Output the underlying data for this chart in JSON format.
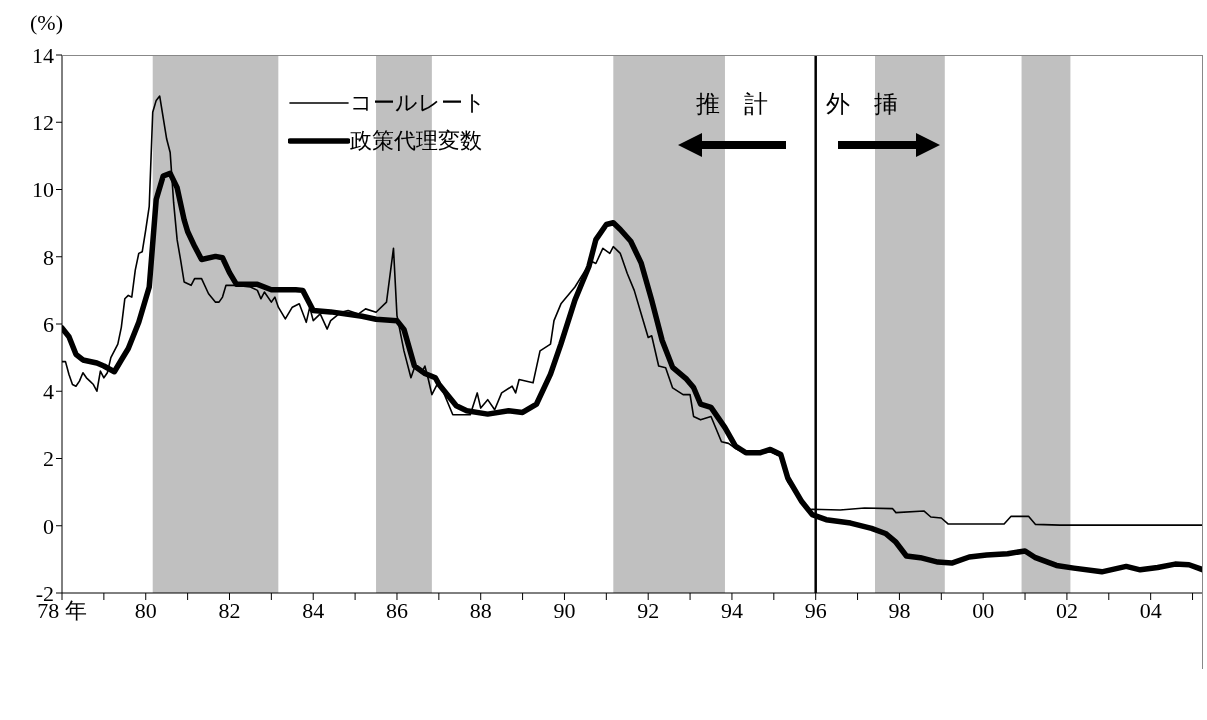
{
  "chart_data": {
    "type": "line",
    "ylabel": "(%)",
    "xlim": [
      "1978-01",
      "2005-04"
    ],
    "ylim": [
      -2,
      14
    ],
    "yticks": [
      -2,
      0,
      2,
      4,
      6,
      8,
      10,
      12,
      14
    ],
    "xticks": [
      {
        "value": "1978",
        "label": "78 年"
      },
      {
        "value": "1979",
        "label": null
      },
      {
        "value": "1980",
        "label": "80"
      },
      {
        "value": "1981",
        "label": null
      },
      {
        "value": "1982",
        "label": "82"
      },
      {
        "value": "1983",
        "label": null
      },
      {
        "value": "1984",
        "label": "84"
      },
      {
        "value": "1985",
        "label": null
      },
      {
        "value": "1986",
        "label": "86"
      },
      {
        "value": "1987",
        "label": null
      },
      {
        "value": "1988",
        "label": "88"
      },
      {
        "value": "1989",
        "label": null
      },
      {
        "value": "1990",
        "label": "90"
      },
      {
        "value": "1991",
        "label": null
      },
      {
        "value": "1992",
        "label": "92"
      },
      {
        "value": "1993",
        "label": null
      },
      {
        "value": "1994",
        "label": "94"
      },
      {
        "value": "1995",
        "label": null
      },
      {
        "value": "1996",
        "label": "96"
      },
      {
        "value": "1997",
        "label": null
      },
      {
        "value": "1998",
        "label": "98"
      },
      {
        "value": "1999",
        "label": null
      },
      {
        "value": "2000",
        "label": "00"
      },
      {
        "value": "2001",
        "label": null
      },
      {
        "value": "2002",
        "label": "02"
      },
      {
        "value": "2003",
        "label": null
      },
      {
        "value": "2004",
        "label": "04"
      },
      {
        "value": "2005",
        "label": null
      }
    ],
    "grid": false,
    "legend": "top left",
    "series": [
      {
        "name": "コールレート",
        "color": "#000000",
        "x": [
          "1978-01",
          "1978-02",
          "1978-03",
          "1978-04",
          "1978-05",
          "1978-06",
          "1978-07",
          "1978-08",
          "1978-09",
          "1978-10",
          "1978-11",
          "1978-12",
          "1979-01",
          "1979-02",
          "1979-03",
          "1979-05",
          "1979-06",
          "1979-07",
          "1979-08",
          "1979-09",
          "1979-10",
          "1979-11",
          "1979-12",
          "1980-01",
          "1980-02",
          "1980-03",
          "1980-04",
          "1980-05",
          "1980-07",
          "1980-08",
          "1980-09",
          "1980-10",
          "1980-11",
          "1980-12",
          "1981-02",
          "1981-03",
          "1981-05",
          "1981-07",
          "1981-09",
          "1981-10",
          "1981-11",
          "1981-12",
          "1982-03",
          "1982-07",
          "1982-09",
          "1982-10",
          "1982-11",
          "1983-01",
          "1983-02",
          "1983-03",
          "1983-05",
          "1983-07",
          "1983-09",
          "1983-11",
          "1983-12",
          "1984-01",
          "1984-03",
          "1984-05",
          "1984-06",
          "1984-09",
          "1984-11",
          "1985-02",
          "1985-04",
          "1985-07",
          "1985-10",
          "1985-12",
          "1986-01",
          "1986-03",
          "1986-05",
          "1986-06",
          "1986-08",
          "1986-09",
          "1986-10",
          "1986-11",
          "1987-01",
          "1987-05",
          "1987-10",
          "1987-12",
          "1988-01",
          "1988-03",
          "1988-05",
          "1988-07",
          "1988-10",
          "1988-11",
          "1988-12",
          "1989-04",
          "1989-06",
          "1989-09",
          "1989-10",
          "1989-12",
          "1990-04",
          "1990-07",
          "1990-09",
          "1990-10",
          "1990-12",
          "1991-02",
          "1991-03",
          "1991-05",
          "1991-07",
          "1991-09",
          "1991-11",
          "1992-01",
          "1992-02",
          "1992-04",
          "1992-06",
          "1992-08",
          "1992-11",
          "1993-01",
          "1993-02",
          "1993-04",
          "1993-07",
          "1993-10",
          "1993-12",
          "1994-02",
          "1994-05",
          "1994-09",
          "1994-12",
          "1995-03",
          "1995-05",
          "1995-09",
          "1995-11",
          "1995-12",
          "1996-08",
          "1997-03",
          "1997-11",
          "1997-12",
          "1998-08",
          "1998-10",
          "1999-01",
          "1999-03",
          "2000-07",
          "2000-09",
          "2001-02",
          "2001-04",
          "2001-11",
          "2005-04"
        ],
        "values": [
          4.88,
          4.88,
          4.5,
          4.2,
          4.15,
          4.3,
          4.55,
          4.4,
          4.3,
          4.2,
          4.0,
          4.6,
          4.4,
          4.55,
          5.0,
          5.4,
          5.9,
          6.75,
          6.85,
          6.8,
          7.6,
          8.1,
          8.15,
          8.8,
          9.5,
          12.3,
          12.65,
          12.78,
          11.5,
          11.1,
          9.6,
          8.5,
          7.9,
          7.25,
          7.15,
          7.35,
          7.35,
          6.9,
          6.65,
          6.65,
          6.8,
          7.15,
          7.15,
          7.1,
          7.0,
          6.75,
          6.95,
          6.65,
          6.8,
          6.5,
          6.15,
          6.5,
          6.6,
          6.05,
          6.5,
          6.1,
          6.3,
          5.85,
          6.1,
          6.35,
          6.4,
          6.3,
          6.45,
          6.35,
          6.65,
          8.25,
          6.25,
          5.2,
          4.4,
          4.7,
          4.55,
          4.75,
          4.35,
          3.9,
          4.3,
          3.3,
          3.3,
          3.95,
          3.5,
          3.75,
          3.45,
          3.95,
          4.15,
          3.95,
          4.35,
          4.25,
          5.2,
          5.4,
          6.1,
          6.6,
          7.1,
          7.6,
          7.85,
          7.8,
          8.25,
          8.1,
          8.3,
          8.1,
          7.5,
          7.0,
          6.3,
          5.6,
          5.65,
          4.75,
          4.7,
          4.1,
          3.9,
          3.9,
          3.25,
          3.15,
          3.25,
          2.5,
          2.45,
          2.3,
          2.15,
          2.15,
          2.2,
          2.05,
          1.3,
          0.75,
          0.47,
          0.49,
          0.47,
          0.53,
          0.51,
          0.39,
          0.44,
          0.26,
          0.23,
          0.05,
          0.05,
          0.28,
          0.28,
          0.04,
          0.02,
          0.02
        ]
      },
      {
        "name": "政策代理変数",
        "color": "#000000",
        "x": [
          "1978-01",
          "1978-03",
          "1978-05",
          "1978-07",
          "1978-11",
          "1979-01",
          "1979-04",
          "1979-06",
          "1979-08",
          "1979-11",
          "1980-02",
          "1980-04",
          "1980-06",
          "1980-08",
          "1980-10",
          "1980-12",
          "1981-01",
          "1981-03",
          "1981-05",
          "1981-09",
          "1981-11",
          "1982-01",
          "1982-03",
          "1982-09",
          "1983-01",
          "1983-08",
          "1983-10",
          "1984-01",
          "1984-06",
          "1985-03",
          "1985-07",
          "1986-01",
          "1986-03",
          "1986-06",
          "1986-09",
          "1986-12",
          "1987-01",
          "1987-06",
          "1987-09",
          "1988-03",
          "1988-09",
          "1989-01",
          "1989-05",
          "1989-09",
          "1989-12",
          "1990-04",
          "1990-06",
          "1990-08",
          "1990-10",
          "1991-01",
          "1991-03",
          "1991-05",
          "1991-08",
          "1991-11",
          "1992-02",
          "1992-05",
          "1992-08",
          "1992-12",
          "1993-02",
          "1993-04",
          "1993-07",
          "1993-11",
          "1994-02",
          "1994-05",
          "1994-09",
          "1994-12",
          "1995-03",
          "1995-05",
          "1995-09",
          "1995-12",
          "1996-04",
          "1996-11",
          "1997-05",
          "1997-09",
          "1997-12",
          "1998-03",
          "1998-07",
          "1998-12",
          "1999-04",
          "1999-09",
          "2000-02",
          "2000-08",
          "2001-01",
          "2001-04",
          "2001-10",
          "2002-03",
          "2002-11",
          "2003-06",
          "2003-10",
          "2004-03",
          "2004-08",
          "2004-12",
          "2005-04"
        ],
        "values": [
          5.88,
          5.62,
          5.1,
          4.93,
          4.84,
          4.75,
          4.58,
          4.93,
          5.27,
          6.05,
          7.1,
          9.7,
          10.4,
          10.48,
          10.05,
          9.1,
          8.75,
          8.31,
          7.92,
          8.01,
          7.97,
          7.53,
          7.18,
          7.18,
          7.02,
          7.02,
          7.0,
          6.4,
          6.36,
          6.23,
          6.14,
          6.1,
          5.84,
          4.75,
          4.53,
          4.4,
          4.21,
          3.57,
          3.42,
          3.32,
          3.42,
          3.37,
          3.62,
          4.51,
          5.41,
          6.71,
          7.21,
          7.71,
          8.51,
          8.96,
          9.01,
          8.81,
          8.46,
          7.81,
          6.71,
          5.51,
          4.71,
          4.36,
          4.11,
          3.62,
          3.52,
          2.92,
          2.37,
          2.17,
          2.17,
          2.27,
          2.12,
          1.42,
          0.72,
          0.33,
          0.18,
          0.08,
          -0.08,
          -0.23,
          -0.49,
          -0.9,
          -0.95,
          -1.08,
          -1.11,
          -0.93,
          -0.87,
          -0.83,
          -0.75,
          -0.95,
          -1.18,
          -1.26,
          -1.37,
          -1.21,
          -1.31,
          -1.24,
          -1.14,
          -1.16,
          -1.31
        ]
      }
    ],
    "bands": [
      {
        "axis": "x",
        "from": "1980-03",
        "to": "1983-03",
        "color": "#c0c0c0"
      },
      {
        "axis": "x",
        "from": "1985-07",
        "to": "1986-11",
        "color": "#c0c0c0"
      },
      {
        "axis": "x",
        "from": "1991-03",
        "to": "1993-11",
        "color": "#c0c0c0"
      },
      {
        "axis": "x",
        "from": "1997-06",
        "to": "1999-02",
        "color": "#c0c0c0"
      },
      {
        "axis": "x",
        "from": "2000-12",
        "to": "2002-02",
        "color": "#c0c0c0"
      }
    ],
    "ref_lines": [
      {
        "axis": "x",
        "value": "1996-01",
        "color": "#000000"
      }
    ],
    "annotations": [
      "推　計",
      "外　挿"
    ]
  }
}
